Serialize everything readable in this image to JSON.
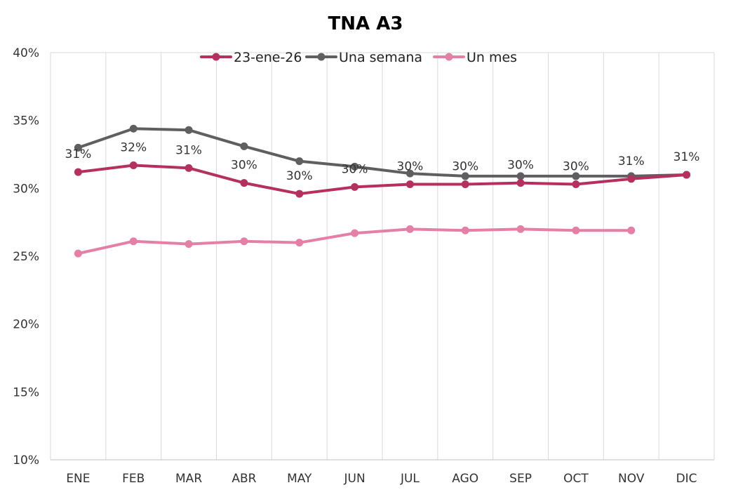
{
  "chart_data": {
    "type": "line",
    "title": "TNA A3",
    "xlabel": "",
    "ylabel": "",
    "categories": [
      "ENE",
      "FEB",
      "MAR",
      "ABR",
      "MAY",
      "JUN",
      "JUL",
      "AGO",
      "SEP",
      "OCT",
      "NOV",
      "DIC"
    ],
    "ylim": [
      10,
      40
    ],
    "yticks": [
      10,
      15,
      20,
      25,
      30,
      35,
      40
    ],
    "ytick_labels": [
      "10%",
      "15%",
      "20%",
      "25%",
      "30%",
      "35%",
      "40%"
    ],
    "grid": "vertical",
    "legend_position": "top",
    "series": [
      {
        "name": "23-ene-26",
        "color": "#B5305F",
        "values": [
          31.2,
          31.7,
          31.5,
          30.4,
          29.6,
          30.1,
          30.3,
          30.3,
          30.4,
          30.3,
          30.7,
          31.0
        ],
        "labels": [
          "31%",
          "32%",
          "31%",
          "30%",
          "30%",
          "30%",
          "30%",
          "30%",
          "30%",
          "30%",
          "31%",
          "31%"
        ]
      },
      {
        "name": "Una semana",
        "color": "#5F5F61",
        "values": [
          33.0,
          34.4,
          34.3,
          33.1,
          32.0,
          31.6,
          31.1,
          30.9,
          30.9,
          30.9,
          30.9,
          31.0
        ]
      },
      {
        "name": "Un mes",
        "color": "#E57FA6",
        "values": [
          25.2,
          26.1,
          25.9,
          26.1,
          26.0,
          26.7,
          27.0,
          26.9,
          27.0,
          26.9,
          26.9,
          null
        ]
      }
    ]
  }
}
